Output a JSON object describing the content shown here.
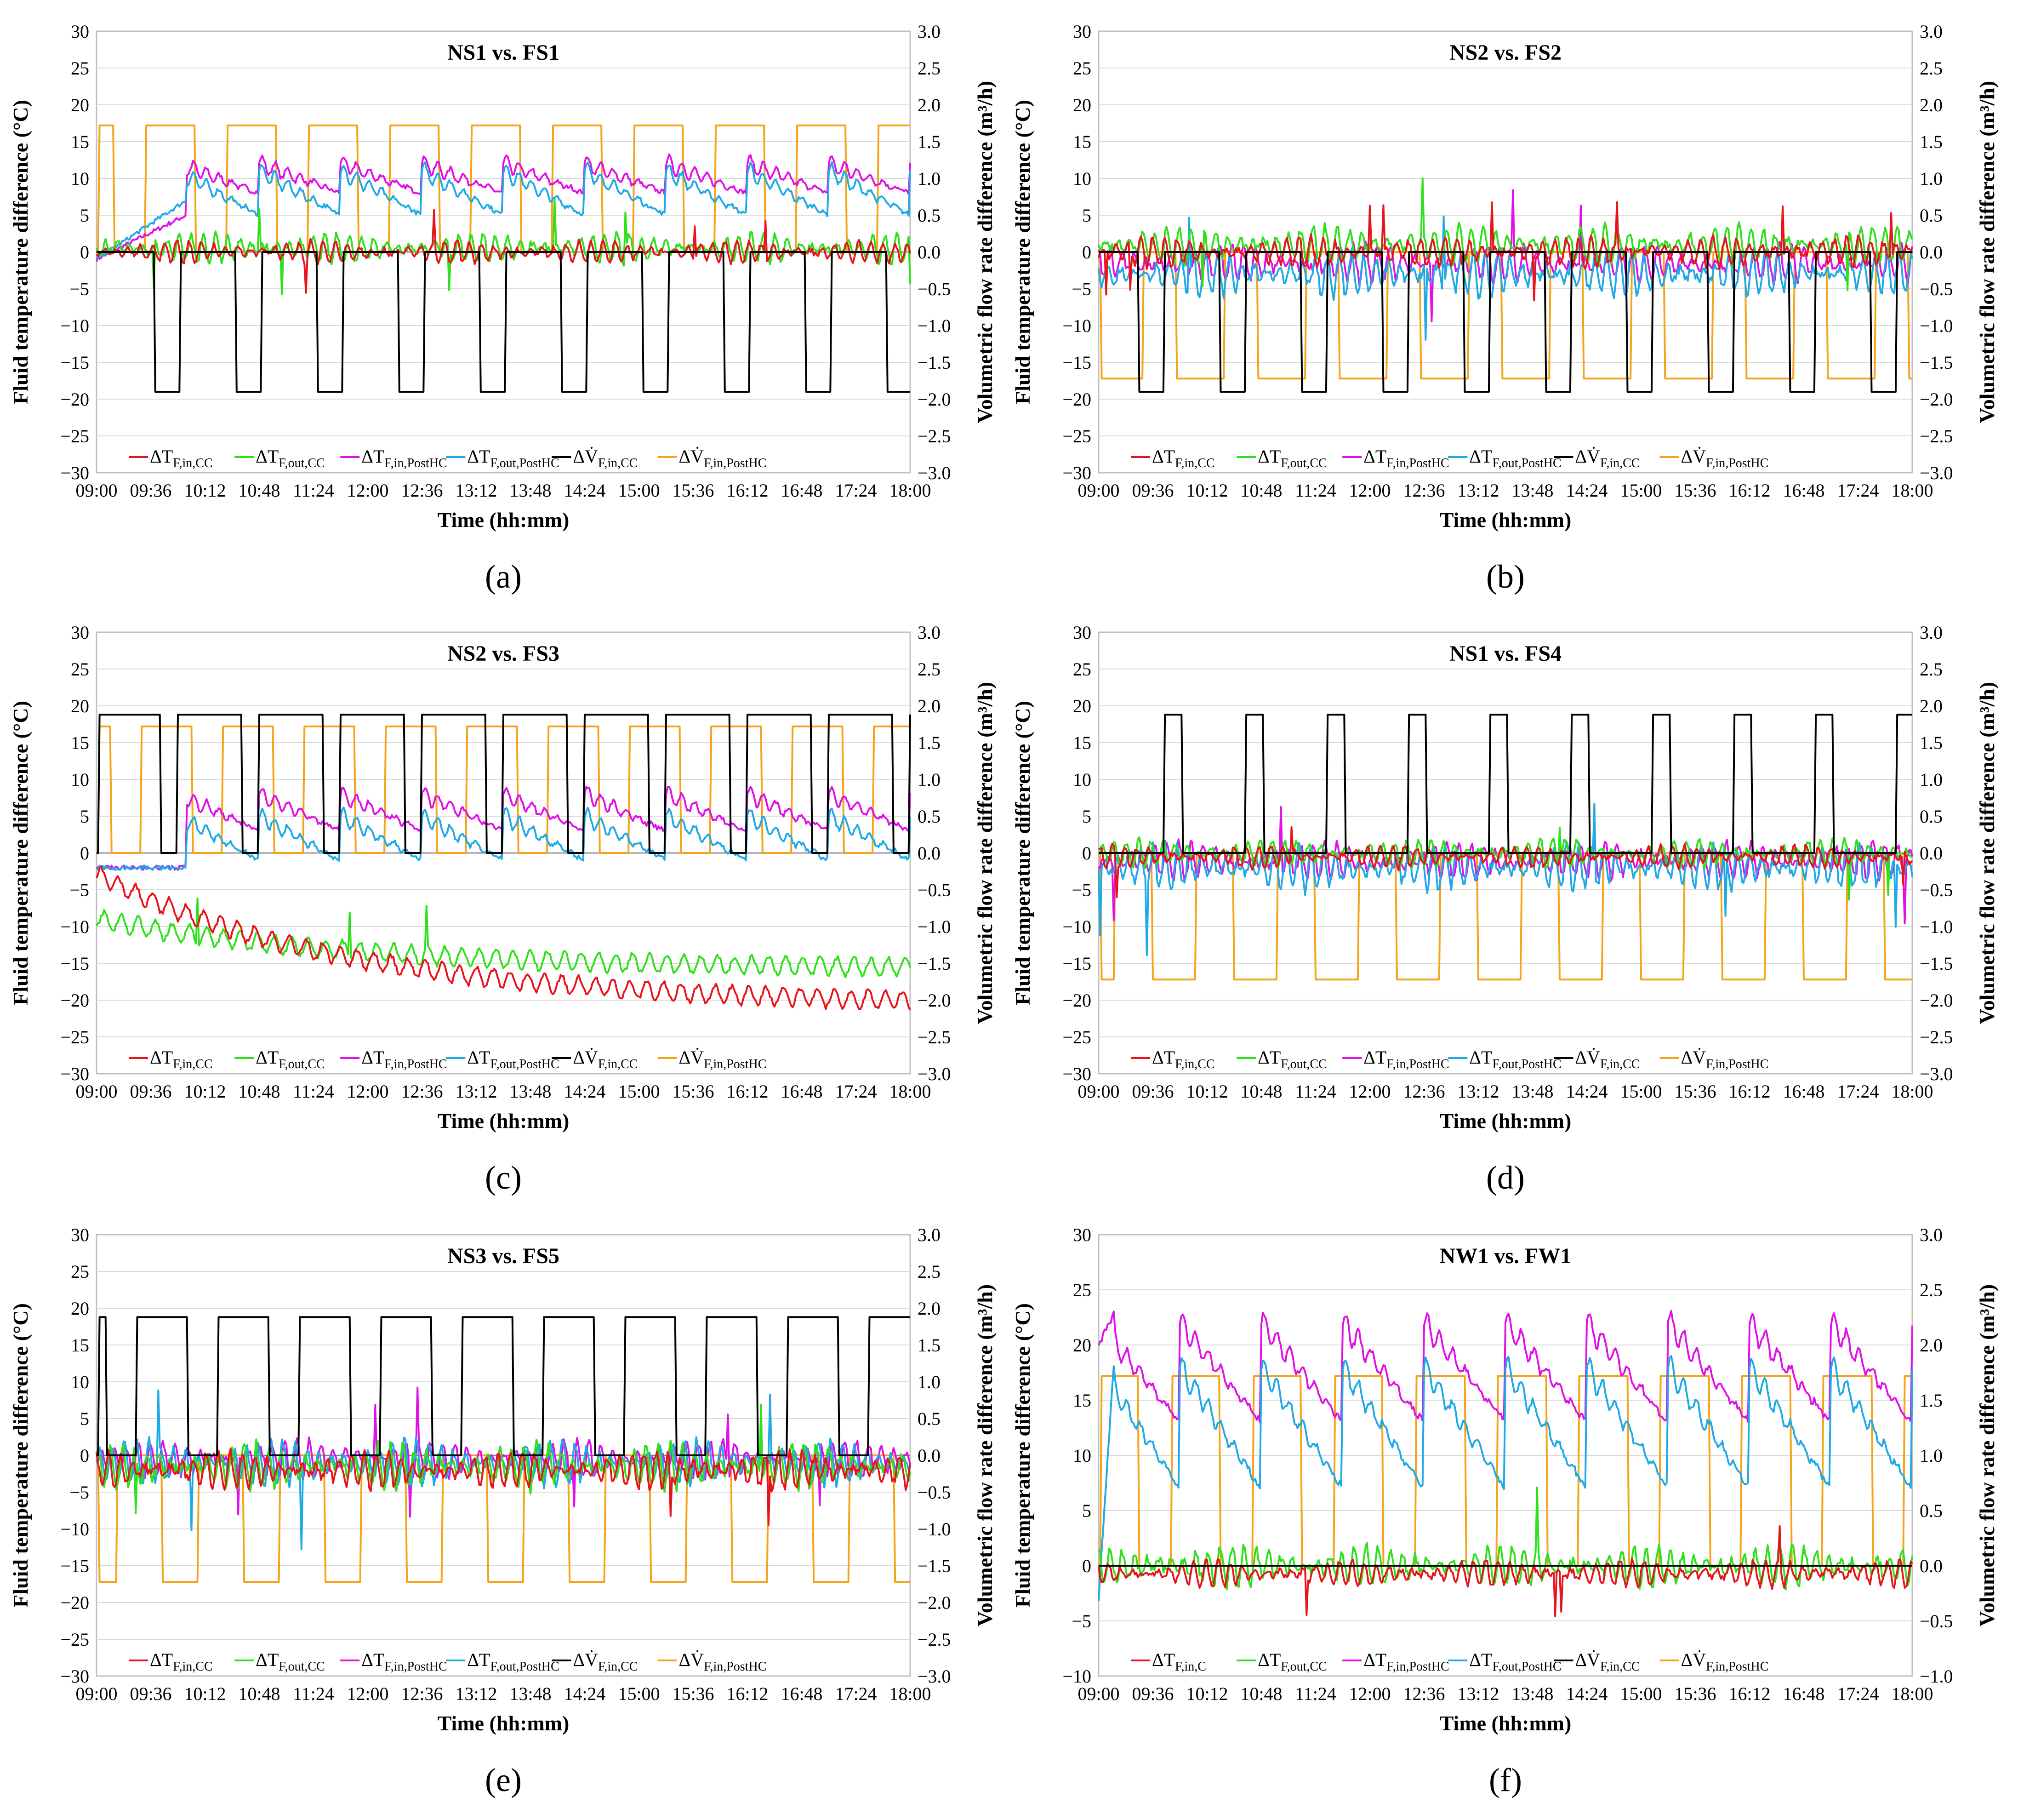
{
  "colors": {
    "dT_in_CC": "#e8141c",
    "dT_out_CC": "#2ee11a",
    "dT_in_PostHC": "#e010e6",
    "dT_out_PostHC": "#1fa9e6",
    "dV_in_CC": "#000000",
    "dV_in_PostHC": "#f4a31a"
  },
  "axis_labels": {
    "y_left": "Fluid temperature difference (°C)",
    "y_right": "Volumetric flow rate difference (m³/h)",
    "x": "Time (hh:mm)"
  },
  "legend": [
    {
      "key": "dT_in_CC",
      "label": "ΔT",
      "sub": "F,in,CC"
    },
    {
      "key": "dT_out_CC",
      "label": "ΔT",
      "sub": "F,out,CC"
    },
    {
      "key": "dT_in_PostHC",
      "label": "ΔT",
      "sub": "F,in,PostHC"
    },
    {
      "key": "dT_out_PostHC",
      "label": "ΔT",
      "sub": "F,out,PostHC"
    },
    {
      "key": "dV_in_CC",
      "label": "ΔV̇",
      "sub": "F,in,CC"
    },
    {
      "key": "dV_in_PostHC",
      "label": "ΔV̇",
      "sub": "F,in,PostHC"
    }
  ],
  "x_ticks": [
    "09:00",
    "09:36",
    "10:12",
    "10:48",
    "11:24",
    "12:00",
    "12:36",
    "13:12",
    "13:48",
    "14:24",
    "15:00",
    "15:36",
    "16:12",
    "16:48",
    "17:24",
    "18:00"
  ],
  "chart_data": [
    {
      "type": "line",
      "panel": "(a)",
      "title": "NS1 vs. FS1",
      "xlabel": "Time (hh:mm)",
      "ylabel": "Fluid temperature difference (°C)",
      "y2label": "Volumetric flow rate difference (m³/h)",
      "ylim": [
        -30,
        30
      ],
      "y2lim": [
        -3.0,
        3.0
      ],
      "y_ticks": [
        "30",
        "25",
        "20",
        "15",
        "10",
        "5",
        "0",
        "−5",
        "−10",
        "−15",
        "−20",
        "−25",
        "−30"
      ],
      "y2_ticks": [
        "3.0",
        "2.5",
        "2.0",
        "1.5",
        "1.0",
        "0.5",
        "0.0",
        "−0.5",
        "−1.0",
        "−1.5",
        "−2.0",
        "−2.5",
        "−3.0"
      ],
      "legend_subs": {
        "dT_in_CC": "F,in,CC"
      },
      "series": [
        {
          "key": "dT_in_CC",
          "name": "ΔT F,in,CC",
          "axis": "left",
          "kind": "osc",
          "base": 0,
          "amp": 1.5
        },
        {
          "key": "dT_out_CC",
          "name": "ΔT F,out,CC",
          "axis": "left",
          "kind": "osc",
          "base": 0.5,
          "amp": 2
        },
        {
          "key": "dT_in_PostHC",
          "name": "ΔT F,in,PostHC",
          "axis": "left",
          "kind": "saw",
          "first": 0.6,
          "lead": [
            -1,
            5
          ],
          "on": 12,
          "off": 8
        },
        {
          "key": "dT_out_PostHC",
          "name": "ΔT F,out,PostHC",
          "axis": "left",
          "kind": "saw",
          "first": 0.6,
          "lead": [
            -1,
            7
          ],
          "on": 11,
          "off": 5
        },
        {
          "key": "dV_in_CC",
          "name": "ΔV̇ F,in,CC",
          "axis": "right",
          "kind": "pulse",
          "base": 0,
          "high": -1.9,
          "start": 2.28,
          "duty": 0.3
        },
        {
          "key": "dV_in_PostHC",
          "name": "ΔV̇ F,in,PostHC",
          "axis": "right",
          "kind": "pulse",
          "base": 0,
          "high": 1.72,
          "start": 0.4,
          "duty": 0.62
        }
      ]
    },
    {
      "type": "line",
      "panel": "(b)",
      "title": "NS2 vs. FS2",
      "xlabel": "Time (hh:mm)",
      "ylabel": "Fluid temperature difference (°C)",
      "y2label": "Volumetric flow rate difference (m³/h)",
      "ylim": [
        -30,
        30
      ],
      "y2lim": [
        -3.0,
        3.0
      ],
      "y_ticks": [
        "30",
        "25",
        "20",
        "15",
        "10",
        "5",
        "0",
        "−5",
        "−10",
        "−15",
        "−20",
        "−25",
        "−30"
      ],
      "y2_ticks": [
        "3.0",
        "2.5",
        "2.0",
        "1.5",
        "1.0",
        "0.5",
        "0.0",
        "−0.5",
        "−1.0",
        "−1.5",
        "−2.0",
        "−2.5",
        "−3.0"
      ],
      "legend_subs": {
        "dT_in_CC": "F,in,CC"
      },
      "series": [
        {
          "key": "dT_in_CC",
          "name": "ΔT F,in,CC",
          "axis": "left",
          "kind": "osc",
          "base": 0,
          "amp": 2
        },
        {
          "key": "dT_out_CC",
          "name": "ΔT F,out,CC",
          "axis": "left",
          "kind": "osc",
          "base": 1,
          "amp": 2.5
        },
        {
          "key": "dT_in_PostHC",
          "name": "ΔT F,in,PostHC",
          "axis": "left",
          "kind": "osc",
          "base": -1.5,
          "amp": 2.5
        },
        {
          "key": "dT_out_PostHC",
          "name": "ΔT F,out,PostHC",
          "axis": "left",
          "kind": "osc",
          "base": -3,
          "amp": 3
        },
        {
          "key": "dV_in_CC",
          "name": "ΔV̇ F,in,CC",
          "axis": "right",
          "kind": "pulse",
          "base": 0,
          "high": -1.9,
          "start": 0.5,
          "duty": 0.3
        },
        {
          "key": "dV_in_PostHC",
          "name": "ΔV̇ F,in,PostHC",
          "axis": "right",
          "kind": "pulse",
          "base": 0,
          "high": -1.72,
          "start": 0.05,
          "duty": 0.6
        }
      ]
    },
    {
      "type": "line",
      "panel": "(c)",
      "title": "NS2 vs. FS3",
      "xlabel": "Time (hh:mm)",
      "ylabel": "Fluid temperature difference (°C)",
      "y2label": "Volumetric flow rate difference (m³/h)",
      "ylim": [
        -30,
        30
      ],
      "y2lim": [
        -3.0,
        3.0
      ],
      "y_ticks": [
        "30",
        "25",
        "20",
        "15",
        "10",
        "5",
        "0",
        "−5",
        "−10",
        "−15",
        "−20",
        "−25",
        "−30"
      ],
      "y2_ticks": [
        "3.0",
        "2.5",
        "2.0",
        "1.5",
        "1.0",
        "0.5",
        "0.0",
        "−0.5",
        "−1.0",
        "−1.5",
        "−2.0",
        "−2.5",
        "−3.0"
      ],
      "legend_subs": {
        "dT_in_CC": "F,in,CC"
      },
      "series": [
        {
          "key": "dT_in_CC",
          "name": "ΔT F,in,CC",
          "axis": "left",
          "kind": "decay",
          "start": -3,
          "end": -20,
          "amp": 1.5
        },
        {
          "key": "dT_out_CC",
          "name": "ΔT F,out,CC",
          "axis": "left",
          "kind": "decay",
          "start": -9,
          "end": -15.5,
          "amp": 1.5
        },
        {
          "key": "dT_in_PostHC",
          "name": "ΔT F,in,PostHC",
          "axis": "left",
          "kind": "saw",
          "first": 0.6,
          "lead": [
            -2,
            -2
          ],
          "on": 8,
          "off": 3
        },
        {
          "key": "dT_out_PostHC",
          "name": "ΔT F,out,PostHC",
          "axis": "left",
          "kind": "saw",
          "first": 0.6,
          "lead": [
            -2,
            -2
          ],
          "on": 5,
          "off": -1
        },
        {
          "key": "dV_in_CC",
          "name": "ΔV̇ F,in,CC",
          "axis": "right",
          "kind": "pulse",
          "base": 0,
          "high": 1.88,
          "start": 0.0,
          "duty": 0.78
        },
        {
          "key": "dV_in_PostHC",
          "name": "ΔV̇ F,in,PostHC",
          "axis": "right",
          "kind": "pulse",
          "base": 0,
          "high": 1.72,
          "start": 0.45,
          "duty": 0.62
        }
      ]
    },
    {
      "type": "line",
      "panel": "(d)",
      "title": "NS1 vs. FS4",
      "xlabel": "Time (hh:mm)",
      "ylabel": "Fluid temperature difference (°C)",
      "y2label": "Volumetric flow rate difference (m³/h)",
      "ylim": [
        -30,
        30
      ],
      "y2lim": [
        -3.0,
        3.0
      ],
      "y_ticks": [
        "30",
        "25",
        "20",
        "15",
        "10",
        "5",
        "0",
        "−5",
        "−10",
        "−15",
        "−20",
        "−25",
        "−30"
      ],
      "y2_ticks": [
        "3.0",
        "2.5",
        "2.0",
        "1.5",
        "1.0",
        "0.5",
        "0.0",
        "−0.5",
        "−1.0",
        "−1.5",
        "−2.0",
        "−2.5",
        "−3.0"
      ],
      "legend_subs": {
        "dT_in_CC": "F,in,CC"
      },
      "series": [
        {
          "key": "dT_in_CC",
          "name": "ΔT F,in,CC",
          "axis": "left",
          "kind": "osc",
          "base": -0.5,
          "amp": 1.5
        },
        {
          "key": "dT_out_CC",
          "name": "ΔT F,out,CC",
          "axis": "left",
          "kind": "osc",
          "base": 0,
          "amp": 1.8
        },
        {
          "key": "dT_in_PostHC",
          "name": "ΔT F,in,PostHC",
          "axis": "left",
          "kind": "osc",
          "base": -1,
          "amp": 2.5
        },
        {
          "key": "dT_out_PostHC",
          "name": "ΔT F,out,PostHC",
          "axis": "left",
          "kind": "osc",
          "base": -2,
          "amp": 3
        },
        {
          "key": "dV_in_CC",
          "name": "ΔV̇ F,in,CC",
          "axis": "right",
          "kind": "pulse",
          "base": 0,
          "high": 1.88,
          "start": 2.2,
          "duty": 0.22
        },
        {
          "key": "dV_in_PostHC",
          "name": "ΔV̇ F,in,PostHC",
          "axis": "right",
          "kind": "pulse",
          "base": 0,
          "high": -1.72,
          "start": 0.35,
          "duty": 0.55
        }
      ]
    },
    {
      "type": "line",
      "panel": "(e)",
      "title": "NS3 vs. FS5",
      "xlabel": "Time (hh:mm)",
      "ylabel": "Fluid temperature difference (°C)",
      "y2label": "Volumetric flow rate difference (m³/h)",
      "ylim": [
        -30,
        30
      ],
      "y2lim": [
        -3.0,
        3.0
      ],
      "y_ticks": [
        "30",
        "25",
        "20",
        "15",
        "10",
        "5",
        "0",
        "−5",
        "−10",
        "−15",
        "−20",
        "−25",
        "−30"
      ],
      "y2_ticks": [
        "3.0",
        "2.5",
        "2.0",
        "1.5",
        "1.0",
        "0.5",
        "0.0",
        "−0.5",
        "−1.0",
        "−1.5",
        "−2.0",
        "−2.5",
        "−3.0"
      ],
      "legend_subs": {
        "dT_in_CC": "F,in,CC"
      },
      "series": [
        {
          "key": "dT_in_CC",
          "name": "ΔT F,in,CC",
          "axis": "left",
          "kind": "osc",
          "base": -2,
          "amp": 2.5
        },
        {
          "key": "dT_out_CC",
          "name": "ΔT F,out,CC",
          "axis": "left",
          "kind": "osc",
          "base": -1.5,
          "amp": 3
        },
        {
          "key": "dT_in_PostHC",
          "name": "ΔT F,in,PostHC",
          "axis": "left",
          "kind": "osc",
          "base": -0.5,
          "amp": 2.5
        },
        {
          "key": "dT_out_PostHC",
          "name": "ΔT F,out,PostHC",
          "axis": "left",
          "kind": "osc",
          "base": -1,
          "amp": 3
        },
        {
          "key": "dV_in_CC",
          "name": "ΔV̇ F,in,CC",
          "axis": "right",
          "kind": "pulse",
          "base": 0,
          "high": 1.88,
          "start": 0.5,
          "duty": 0.62
        },
        {
          "key": "dV_in_PostHC",
          "name": "ΔV̇ F,in,PostHC",
          "axis": "right",
          "kind": "pulse",
          "base": 0,
          "high": -1.72,
          "start": 0.2,
          "duty": 0.45
        }
      ]
    },
    {
      "type": "line",
      "panel": "(f)",
      "title": "NW1 vs. FW1",
      "xlabel": "Time (hh:mm)",
      "ylabel": "Fluid temperature difference (°C)",
      "y2label": "Volumetric flow rate difference (m³/h)",
      "ylim": [
        -10,
        30
      ],
      "y2lim": [
        -1.0,
        3.0
      ],
      "y_ticks": [
        "30",
        "25",
        "20",
        "15",
        "10",
        "5",
        "0",
        "−5",
        "−10"
      ],
      "y2_ticks": [
        "3.0",
        "2.5",
        "2.0",
        "1.5",
        "1.0",
        "0.5",
        "0.0",
        "−0.5",
        "−1.0"
      ],
      "legend_subs": {
        "dT_in_CC": "F,in,C"
      },
      "series": [
        {
          "key": "dT_in_CC",
          "name": "ΔT F,in,C",
          "axis": "left",
          "kind": "osc",
          "base": -0.7,
          "amp": 1.2
        },
        {
          "key": "dT_out_CC",
          "name": "ΔT F,out,CC",
          "axis": "left",
          "kind": "osc",
          "base": 0,
          "amp": 1.8
        },
        {
          "key": "dT_in_PostHC",
          "name": "ΔT F,in,PostHC",
          "axis": "left",
          "kind": "saw",
          "first": 0.0,
          "lead": [
            20,
            23
          ],
          "on": 22,
          "off": 13
        },
        {
          "key": "dT_out_PostHC",
          "name": "ΔT F,out,PostHC",
          "axis": "left",
          "kind": "saw",
          "first": 0.0,
          "lead": [
            -3,
            20
          ],
          "on": 18,
          "off": 7
        },
        {
          "key": "dV_in_CC",
          "name": "ΔV̇ F,in,CC",
          "axis": "right",
          "kind": "pulse",
          "base": 0,
          "high": 0,
          "start": 0,
          "duty": 0
        },
        {
          "key": "dV_in_PostHC",
          "name": "ΔV̇ F,in,PostHC",
          "axis": "right",
          "kind": "pulse",
          "base": 0,
          "high": 1.72,
          "start": 0.1,
          "duty": 0.6
        }
      ]
    }
  ]
}
